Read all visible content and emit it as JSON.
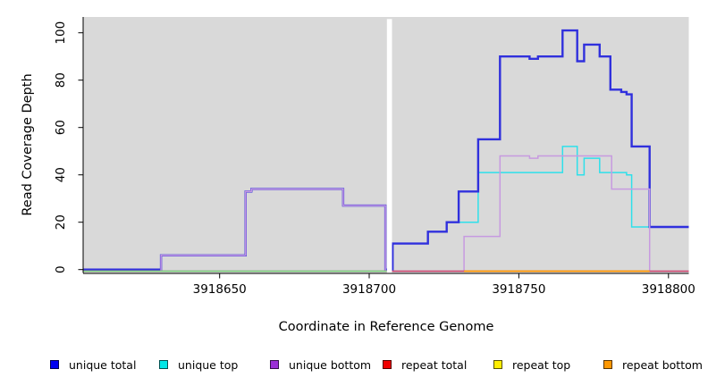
{
  "chart_data": {
    "type": "line",
    "step": true,
    "title": "",
    "xlabel": "Coordinate in Reference Genome",
    "ylabel": "Read Coverage Depth",
    "xlim": [
      3918604.5,
      3918806.8
    ],
    "ylim": [
      0,
      106
    ],
    "grid": false,
    "panel_background": "#d9d9d9",
    "x_ticks": [
      3918650,
      3918700,
      3918750,
      3918800
    ],
    "y_ticks": [
      0,
      20,
      40,
      60,
      80,
      100
    ],
    "mask_region": {
      "x_start": 3918705.9,
      "x_end": 3918707.6,
      "color": "#ffffff"
    },
    "series": [
      {
        "name": "unique top",
        "line_color": "#2ee0ea",
        "width": 1.5,
        "x_end": 3918806.8,
        "steps": [
          [
            3918604.5,
            0
          ],
          [
            3918707.8,
            11
          ],
          [
            3918719.6,
            16
          ],
          [
            3918725.9,
            20
          ],
          [
            3918736.4,
            41
          ],
          [
            3918764.6,
            52
          ],
          [
            3918769.5,
            40
          ],
          [
            3918771.8,
            47
          ],
          [
            3918777,
            41
          ],
          [
            3918786,
            40
          ],
          [
            3918787.7,
            18
          ]
        ]
      },
      {
        "name": "unique total",
        "line_color": "#3030dd",
        "width": 2.4,
        "x_end": 3918806.8,
        "steps": [
          [
            3918604.5,
            0
          ],
          [
            3918630.4,
            6
          ],
          [
            3918658.7,
            33
          ],
          [
            3918660.6,
            34
          ],
          [
            3918691.3,
            27
          ],
          [
            3918705.4,
            0
          ],
          [
            3918707.8,
            11
          ],
          [
            3918719.6,
            16
          ],
          [
            3918725.9,
            20
          ],
          [
            3918729.9,
            33
          ],
          [
            3918736.4,
            55
          ],
          [
            3918743.7,
            90
          ],
          [
            3918753.6,
            89
          ],
          [
            3918756.4,
            90
          ],
          [
            3918764.6,
            101
          ],
          [
            3918769.5,
            88
          ],
          [
            3918771.8,
            95
          ],
          [
            3918777,
            90
          ],
          [
            3918780.6,
            76
          ],
          [
            3918784.2,
            75
          ],
          [
            3918786,
            74
          ],
          [
            3918787.7,
            52
          ],
          [
            3918793.7,
            18
          ]
        ]
      },
      {
        "name": "unique bottom",
        "line_color": "#c79ae0",
        "width": 1.5,
        "x_end": 3918806.8,
        "steps": [
          [
            3918604.5,
            0
          ],
          [
            3918630.4,
            6
          ],
          [
            3918658.7,
            33
          ],
          [
            3918660.6,
            34
          ],
          [
            3918691.3,
            27
          ],
          [
            3918705.4,
            0
          ],
          [
            3918731.7,
            14
          ],
          [
            3918743.7,
            48
          ],
          [
            3918753.6,
            47
          ],
          [
            3918756.4,
            48
          ],
          [
            3918781,
            34
          ],
          [
            3918793.7,
            0
          ]
        ]
      },
      {
        "name": "repeat total",
        "line_color": "#cc4468",
        "width": 1.4,
        "x_end": 3918806.8,
        "steps": [
          [
            3918604.5,
            0
          ]
        ]
      },
      {
        "name": "repeat top",
        "line_color": "#7ed87f",
        "width": 1.4,
        "x_end": 3918705.9,
        "steps": [
          [
            3918604.5,
            0
          ]
        ]
      },
      {
        "name": "repeat bottom",
        "line_color": "#ff9800",
        "width": 1.7,
        "x_end": 3918793.7,
        "steps": [
          [
            3918731.7,
            0
          ]
        ]
      }
    ]
  },
  "legend": {
    "items": [
      {
        "label": "unique total",
        "color": "#0000f0"
      },
      {
        "label": "unique top",
        "color": "#00e6e6"
      },
      {
        "label": "unique bottom",
        "color": "#9b2fd6"
      },
      {
        "label": "repeat total",
        "color": "#f00000"
      },
      {
        "label": "repeat top",
        "color": "#ffee00"
      },
      {
        "label": "repeat bottom",
        "color": "#ff9800"
      }
    ]
  }
}
